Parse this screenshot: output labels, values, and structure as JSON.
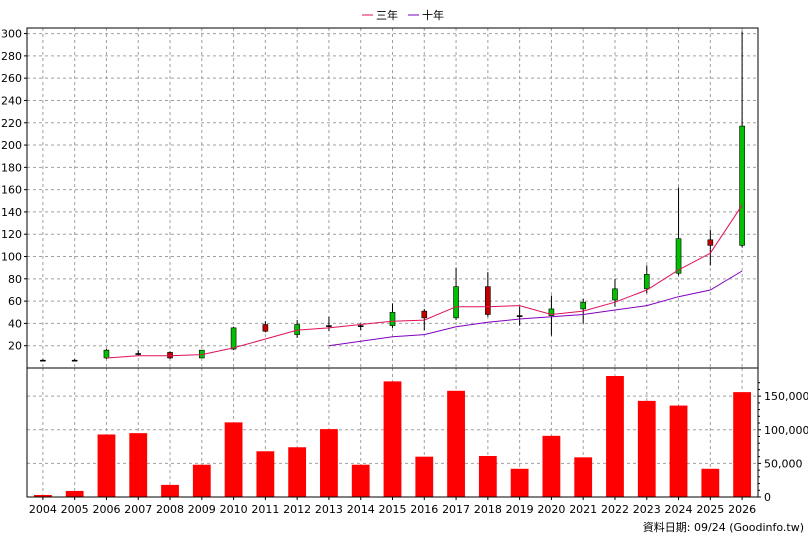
{
  "chart_data": {
    "type": "candlestick+bar",
    "legend": [
      {
        "name": "三年",
        "color": "#e0105a"
      },
      {
        "name": "十年",
        "color": "#8000c0"
      }
    ],
    "years": [
      "2004",
      "2005",
      "2006",
      "2007",
      "2008",
      "2009",
      "2010",
      "2011",
      "2012",
      "2013",
      "2014",
      "2015",
      "2016",
      "2017",
      "2018",
      "2019",
      "2020",
      "2021",
      "2022",
      "2023",
      "2024",
      "2025",
      "2026"
    ],
    "price_axis": {
      "ylim": [
        0,
        305
      ],
      "ticks": [
        20,
        40,
        60,
        80,
        100,
        120,
        140,
        160,
        180,
        200,
        220,
        240,
        260,
        280,
        300
      ]
    },
    "candles": [
      {
        "o": 7,
        "c": 7,
        "h": 8,
        "l": 6
      },
      {
        "o": 7,
        "c": 7,
        "h": 8,
        "l": 6
      },
      {
        "o": 9,
        "c": 16,
        "h": 17,
        "l": 8
      },
      {
        "o": 13,
        "c": 13,
        "h": 16,
        "l": 11
      },
      {
        "o": 14,
        "c": 9,
        "h": 15,
        "l": 8
      },
      {
        "o": 9,
        "c": 16,
        "h": 16,
        "l": 9
      },
      {
        "o": 17,
        "c": 36,
        "h": 37,
        "l": 16
      },
      {
        "o": 39,
        "c": 33,
        "h": 42,
        "l": 32
      },
      {
        "o": 30,
        "c": 39,
        "h": 43,
        "l": 27
      },
      {
        "o": 38,
        "c": 38,
        "h": 46,
        "l": 33
      },
      {
        "o": 38,
        "c": 38,
        "h": 40,
        "l": 34
      },
      {
        "o": 38,
        "c": 50,
        "h": 58,
        "l": 36
      },
      {
        "o": 51,
        "c": 45,
        "h": 53,
        "l": 34
      },
      {
        "o": 45,
        "c": 73,
        "h": 90,
        "l": 43
      },
      {
        "o": 73,
        "c": 48,
        "h": 86,
        "l": 46
      },
      {
        "o": 47,
        "c": 47,
        "h": 55,
        "l": 38
      },
      {
        "o": 47,
        "c": 53,
        "h": 65,
        "l": 29
      },
      {
        "o": 53,
        "c": 59,
        "h": 62,
        "l": 40
      },
      {
        "o": 61,
        "c": 71,
        "h": 80,
        "l": 55
      },
      {
        "o": 71,
        "c": 84,
        "h": 92,
        "l": 67
      },
      {
        "o": 85,
        "c": 116,
        "h": 162,
        "l": 83
      },
      {
        "o": 115,
        "c": 110,
        "h": 124,
        "l": 92
      },
      {
        "o": 110,
        "c": 217,
        "h": 302,
        "l": 108
      }
    ],
    "ma3": [
      null,
      null,
      9,
      11,
      11,
      12,
      18,
      26,
      34,
      36,
      39,
      42,
      43,
      55,
      55,
      56,
      48,
      51,
      59,
      70,
      88,
      103,
      146
    ],
    "ma10": [
      null,
      null,
      null,
      null,
      null,
      null,
      null,
      null,
      null,
      20,
      24,
      28,
      30,
      37,
      41,
      44,
      46,
      48,
      52,
      56,
      64,
      70,
      87
    ],
    "volume_axis": {
      "ylim": [
        0,
        180000
      ],
      "ticks": [
        0,
        50000,
        100000,
        150000
      ],
      "tick_labels": [
        "0",
        "50,000",
        "100,000",
        "150,000"
      ]
    },
    "volume": [
      3000,
      9000,
      93000,
      95000,
      18000,
      48000,
      111000,
      68000,
      74000,
      101000,
      48000,
      172000,
      60000,
      158000,
      61000,
      42000,
      91000,
      59000,
      180000,
      143000,
      136000,
      42000,
      156000
    ],
    "up_color": "#00c000",
    "down_color": "#c00000",
    "volume_color": "#ff0000"
  },
  "footer": {
    "source_text": "資料日期: 09/24  (Goodinfo.tw)"
  }
}
